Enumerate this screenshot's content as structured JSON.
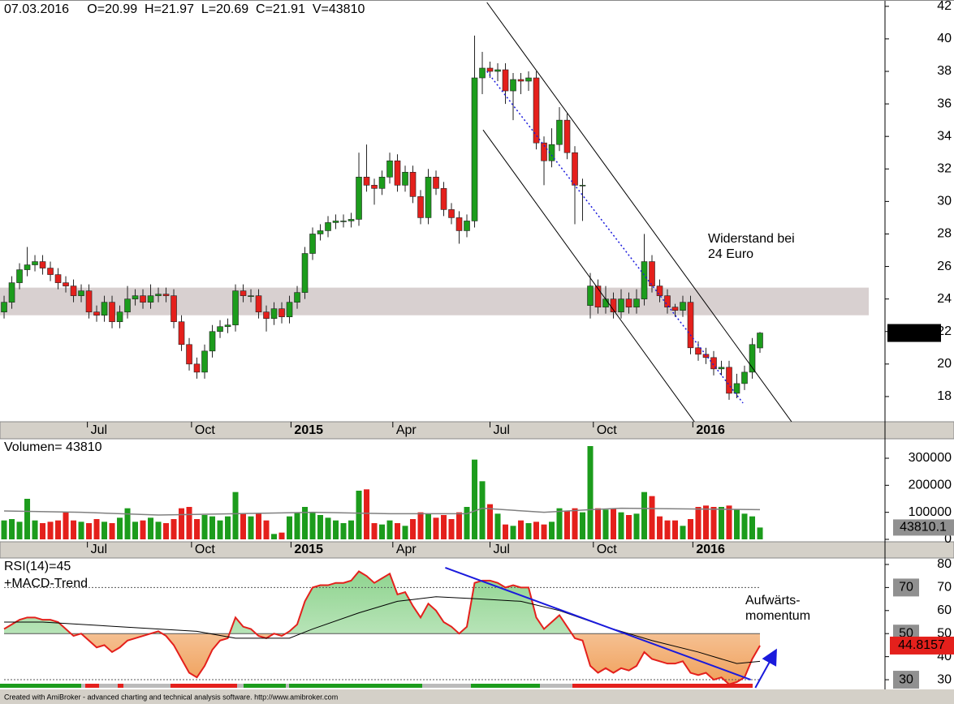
{
  "chart_data": [
    {
      "type": "candlestick",
      "title": "07.03.2016     O=20.99  H=21.97  L=20.69  C=21.91  V=43810",
      "open": [
        23.2,
        23.8,
        25.0,
        25.8,
        26.1,
        26.3,
        25.9,
        25.5,
        25.0,
        24.8,
        24.2,
        24.5,
        23.2,
        23.0,
        23.8,
        22.6,
        23.2,
        24.0,
        24.2,
        23.8,
        24.2,
        24.3,
        24.2,
        22.6,
        21.2,
        20.0,
        19.5,
        20.8,
        22.0,
        22.3,
        22.4,
        24.5,
        24.2,
        24.2,
        23.2,
        22.8,
        23.4,
        22.9,
        23.8,
        24.4,
        26.8,
        28.0,
        28.2,
        28.7,
        28.8,
        28.8,
        28.9,
        31.5,
        31.0,
        30.8,
        31.5,
        32.5,
        31.0,
        31.8,
        30.3,
        29.0,
        31.5,
        30.8,
        29.5,
        29.0,
        28.2,
        28.8,
        37.6,
        38.2,
        38.0,
        38.1,
        36.8,
        37.5,
        37.4,
        37.6,
        33.6,
        32.5,
        33.5,
        35.0,
        33.0,
        31.0,
        23.6,
        24.8,
        23.5,
        24.0,
        23.2,
        24.0,
        23.5,
        24.0,
        26.3,
        24.8,
        24.2,
        23.5,
        23.3,
        23.8,
        21.0,
        20.6,
        20.4,
        19.7,
        19.8,
        18.2,
        18.8,
        19.5,
        20.99
      ],
      "high": [
        24.2,
        25.4,
        26.2,
        27.2,
        26.7,
        26.7,
        26.3,
        25.9,
        25.4,
        25.2,
        24.9,
        24.9,
        23.6,
        24.2,
        24.2,
        23.6,
        24.8,
        24.6,
        24.6,
        24.9,
        24.7,
        24.7,
        24.6,
        23.0,
        21.6,
        20.4,
        21.2,
        22.4,
        22.7,
        22.8,
        24.9,
        24.9,
        24.6,
        24.6,
        23.6,
        23.8,
        23.8,
        24.2,
        24.8,
        27.2,
        28.4,
        28.6,
        29.1,
        29.2,
        29.2,
        29.3,
        33.0,
        33.5,
        31.4,
        31.9,
        33.0,
        32.9,
        32.2,
        32.2,
        30.7,
        32.0,
        31.9,
        31.2,
        29.9,
        29.4,
        29.2,
        40.2,
        39.2,
        38.6,
        38.5,
        38.5,
        37.9,
        37.9,
        38.0,
        38.0,
        34.0,
        34.5,
        35.8,
        35.4,
        33.4,
        31.4,
        25.6,
        25.2,
        24.8,
        24.4,
        24.6,
        24.4,
        24.6,
        28.0,
        26.7,
        25.2,
        24.6,
        23.7,
        24.2,
        24.2,
        21.4,
        21.0,
        20.8,
        20.2,
        20.2,
        19.4,
        19.9,
        21.6,
        21.97
      ],
      "low": [
        22.8,
        23.4,
        24.6,
        25.4,
        25.7,
        25.5,
        25.1,
        24.6,
        24.4,
        23.8,
        23.8,
        22.8,
        22.6,
        22.6,
        22.2,
        22.2,
        22.8,
        23.6,
        23.4,
        23.4,
        23.8,
        23.8,
        22.2,
        20.8,
        19.6,
        19.1,
        19.1,
        20.4,
        21.6,
        21.9,
        22.0,
        23.8,
        23.8,
        22.8,
        22.0,
        22.4,
        22.5,
        22.5,
        23.4,
        24.0,
        26.4,
        27.6,
        27.8,
        28.3,
        28.4,
        28.4,
        28.5,
        30.6,
        29.8,
        30.4,
        31.1,
        30.6,
        30.6,
        29.9,
        28.6,
        28.6,
        30.4,
        29.1,
        28.6,
        27.4,
        27.8,
        28.4,
        36.6,
        37.6,
        37.4,
        36.0,
        35.0,
        36.6,
        36.8,
        33.2,
        31.0,
        32.1,
        33.1,
        32.6,
        28.6,
        28.8,
        22.8,
        23.1,
        23.1,
        22.8,
        22.8,
        23.1,
        23.1,
        23.6,
        24.4,
        23.8,
        23.1,
        22.9,
        22.9,
        20.6,
        20.2,
        20.0,
        19.3,
        19.3,
        17.8,
        17.9,
        18.4,
        19.1,
        20.69
      ],
      "close": [
        23.8,
        25.0,
        25.8,
        26.1,
        26.3,
        25.9,
        25.5,
        25.0,
        24.8,
        24.2,
        24.5,
        23.2,
        23.0,
        23.8,
        22.6,
        23.2,
        24.0,
        24.2,
        23.8,
        24.2,
        24.3,
        24.2,
        22.6,
        21.2,
        20.0,
        19.5,
        20.8,
        22.0,
        22.3,
        22.4,
        24.5,
        24.2,
        24.2,
        23.2,
        22.8,
        23.4,
        22.9,
        23.8,
        24.4,
        26.8,
        28.0,
        28.2,
        28.7,
        28.8,
        28.8,
        28.9,
        31.5,
        31.0,
        30.8,
        31.5,
        32.5,
        31.0,
        31.8,
        30.3,
        29.0,
        31.5,
        30.8,
        29.5,
        29.0,
        28.2,
        28.8,
        37.6,
        38.2,
        38.0,
        38.1,
        36.8,
        37.5,
        37.4,
        37.6,
        33.6,
        32.5,
        33.5,
        35.0,
        33.0,
        31.0,
        31.0,
        24.8,
        23.5,
        24.0,
        23.2,
        24.0,
        23.5,
        24.0,
        26.3,
        24.8,
        24.2,
        23.5,
        23.3,
        23.8,
        21.0,
        20.6,
        20.4,
        19.7,
        19.8,
        18.2,
        18.8,
        19.5,
        21.2,
        21.91
      ],
      "up_color": "#1c9c1c",
      "down_color": "#e4201c",
      "xlim": [
        -0.53,
        114.21
      ],
      "xticks": [
        {
          "value": 10.8,
          "label": "Jul"
        },
        {
          "value": 24.3,
          "label": "Oct"
        },
        {
          "value": 37.2,
          "label": "2015"
        },
        {
          "value": 50.4,
          "label": "Apr"
        },
        {
          "value": 63,
          "label": "Jul"
        },
        {
          "value": 76.4,
          "label": "Oct"
        },
        {
          "value": 89.3,
          "label": "2016"
        }
      ],
      "ylim": [
        16.45,
        42.39
      ],
      "yticks": [
        18,
        20,
        22,
        24,
        26,
        28,
        30,
        32,
        34,
        36,
        38,
        40,
        42
      ],
      "zone": {
        "range": [
          23,
          24.7
        ],
        "color": "#d8d0d0"
      },
      "trendlines": [
        {
          "x": [
            62.6,
            102.1
          ],
          "y": [
            42.24,
            16.45
          ],
          "color": "#000000"
        },
        {
          "x": [
            62.1,
            89.5
          ],
          "y": [
            34.4,
            16.45
          ],
          "color": "#000000"
        },
        {
          "x": [
            62.6,
            95.8
          ],
          "y": [
            38.0,
            17.6
          ],
          "color": "#1a1adc",
          "dashed": true
        }
      ],
      "annotation": {
        "lines": [
          "Widerstand bei",
          "24 Euro"
        ],
        "color": "#1a1adc"
      }
    },
    {
      "type": "bar",
      "title": "Volumen= 43810",
      "values": [
        70000,
        75000,
        65000,
        150000,
        70000,
        60000,
        65000,
        70000,
        100000,
        70000,
        65000,
        60000,
        75000,
        65000,
        60000,
        80000,
        115000,
        65000,
        70000,
        80000,
        65000,
        60000,
        75000,
        115000,
        120000,
        75000,
        90000,
        85000,
        70000,
        85000,
        175000,
        95000,
        85000,
        95000,
        70000,
        20000,
        25000,
        85000,
        100000,
        120000,
        100000,
        90000,
        80000,
        70000,
        60000,
        70000,
        180000,
        185000,
        60000,
        55000,
        70000,
        60000,
        50000,
        75000,
        100000,
        95000,
        80000,
        90000,
        75000,
        100000,
        120000,
        295000,
        215000,
        130000,
        95000,
        55000,
        50000,
        70000,
        60000,
        65000,
        55000,
        65000,
        115000,
        105000,
        115000,
        100000,
        345000,
        115000,
        110000,
        115000,
        100000,
        90000,
        95000,
        175000,
        160000,
        85000,
        70000,
        70000,
        50000,
        75000,
        120000,
        125000,
        120000,
        120000,
        125000,
        110000,
        95000,
        85000,
        43810
      ],
      "up_color": "#1c9c1c",
      "down_color": "#e4201c",
      "ma": {
        "x": [
          0,
          10,
          20,
          30,
          40,
          50,
          60,
          62,
          70,
          76,
          80,
          90,
          98
        ],
        "values": [
          105000,
          100000,
          90000,
          95000,
          100000,
          95000,
          95000,
          115000,
          100000,
          110000,
          115000,
          112000,
          110000
        ],
        "color": "#808080"
      },
      "last_label": "43810.1",
      "xlim": [
        -0.53,
        114.21
      ],
      "xticks": [
        {
          "value": 10.8,
          "label": "Jul"
        },
        {
          "value": 24.3,
          "label": "Oct"
        },
        {
          "value": 37.2,
          "label": "2015"
        },
        {
          "value": 50.4,
          "label": "Apr"
        },
        {
          "value": 63,
          "label": "Jul"
        },
        {
          "value": 76.4,
          "label": "Oct"
        },
        {
          "value": 89.3,
          "label": "2016"
        }
      ],
      "ylim": [
        -9000,
        372000
      ],
      "yticks": [
        0,
        100000,
        200000,
        300000
      ]
    },
    {
      "type": "line",
      "title": "RSI(14)=45",
      "subtitle": "+MACD-Trend",
      "values": [
        52,
        54,
        56,
        57,
        57,
        56,
        56,
        55,
        52,
        49,
        50,
        47,
        44,
        45,
        42,
        44,
        47,
        48,
        49,
        50,
        51,
        49,
        45,
        39,
        33,
        31,
        36,
        43,
        47,
        48,
        57,
        53,
        52,
        49,
        48,
        50,
        49,
        51,
        54,
        64,
        70,
        71,
        71,
        72,
        72,
        73,
        77,
        75,
        72,
        74,
        76,
        67,
        68,
        62,
        57,
        63,
        60,
        55,
        53,
        50,
        53,
        72,
        73,
        73,
        72,
        70,
        71,
        70,
        70,
        57,
        52,
        55,
        58,
        53,
        48,
        47,
        36,
        33,
        35,
        33,
        35,
        34,
        36,
        42,
        39,
        38,
        37,
        37,
        38,
        33,
        32,
        33,
        30,
        31,
        28,
        29,
        31,
        39,
        44.8157
      ],
      "color": "#e4201c",
      "fill_above": "#8fd48f",
      "fill_below": "#f0a05a",
      "baseline": 50,
      "signal": {
        "x": [
          0,
          5,
          15,
          25,
          30,
          37,
          40,
          46,
          51,
          56,
          62,
          67,
          72,
          78,
          84,
          90,
          95,
          98
        ],
        "values": [
          55,
          55,
          53,
          51,
          48,
          48,
          52,
          59,
          64,
          66,
          65,
          64,
          60,
          53,
          47,
          42,
          37,
          38
        ],
        "color": "#000000"
      },
      "levels": [
        70,
        50,
        30
      ],
      "xlim": [
        -0.53,
        114.21
      ],
      "ylim": [
        26.5,
        82.8
      ],
      "yticks": [
        30,
        40,
        50,
        60,
        70,
        80
      ],
      "trendlines": [
        {
          "x": [
            57.2,
            96.8
          ],
          "y": [
            78.6,
            30
          ],
          "color": "#1a1adc"
        },
        {
          "x": [
            97.4,
            100
          ],
          "y": [
            26.5,
            42.3
          ],
          "color": "#1a1adc",
          "arrow": true
        }
      ],
      "annotation": {
        "lines": [
          "Aufwärts-",
          "momentum"
        ],
        "color": "#1a1adc"
      }
    }
  ],
  "footer": "Created with AmiBroker - advanced charting and technical analysis software. http://www.amibroker.com"
}
